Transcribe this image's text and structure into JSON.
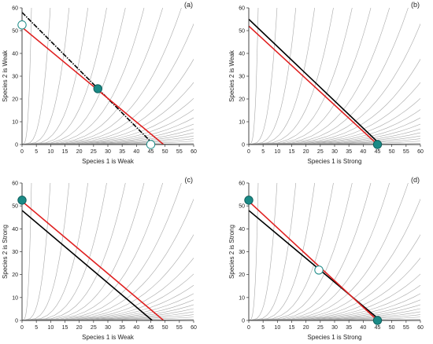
{
  "chart_data": [
    {
      "type": "line",
      "panel_label": "(a)",
      "xlabel": "Species 1 is Weak",
      "ylabel": "Species 2 is Weak",
      "xlim": [
        0,
        60
      ],
      "ylim": [
        0,
        60
      ],
      "xticks": [
        "0",
        "5",
        "10",
        "15",
        "20",
        "25",
        "30",
        "35",
        "40",
        "45",
        "50",
        "55",
        "60"
      ],
      "yticks": [
        "0",
        "10",
        "20",
        "30",
        "40",
        "50",
        "60"
      ],
      "nullclines": [
        {
          "color": "#000000",
          "dashed": true,
          "x": [
            0,
            46
          ],
          "y": [
            58,
            0
          ]
        },
        {
          "color": "#e02020",
          "dashed": false,
          "x": [
            0,
            49.5
          ],
          "y": [
            51.5,
            0
          ]
        }
      ],
      "equilibria": [
        {
          "x": 26.5,
          "y": 24.5,
          "stable": true
        },
        {
          "x": 0,
          "y": 52.5,
          "stable": false
        },
        {
          "x": 45,
          "y": 0,
          "stable": false
        }
      ]
    },
    {
      "type": "line",
      "panel_label": "(b)",
      "xlabel": "Species 1 is Strong",
      "ylabel": "Species 2 is Weak",
      "xlim": [
        0,
        60
      ],
      "ylim": [
        0,
        60
      ],
      "xticks": [
        "0",
        "5",
        "10",
        "15",
        "20",
        "25",
        "30",
        "35",
        "40",
        "45",
        "50",
        "55",
        "60"
      ],
      "yticks": [
        "0",
        "10",
        "20",
        "30",
        "40",
        "50",
        "60"
      ],
      "nullclines": [
        {
          "color": "#000000",
          "dashed": false,
          "x": [
            0,
            46
          ],
          "y": [
            55,
            0
          ]
        },
        {
          "color": "#e02020",
          "dashed": false,
          "x": [
            0,
            45
          ],
          "y": [
            52,
            0
          ]
        }
      ],
      "equilibria": [
        {
          "x": 45,
          "y": 0,
          "stable": true
        }
      ]
    },
    {
      "type": "line",
      "panel_label": "(c)",
      "xlabel": "Species 1 is Weak",
      "ylabel": "Species 2 is Strong",
      "xlim": [
        0,
        60
      ],
      "ylim": [
        0,
        60
      ],
      "xticks": [
        "0",
        "5",
        "10",
        "15",
        "20",
        "25",
        "30",
        "35",
        "40",
        "45",
        "50",
        "55",
        "60"
      ],
      "yticks": [
        "0",
        "10",
        "20",
        "30",
        "40",
        "50",
        "60"
      ],
      "nullclines": [
        {
          "color": "#000000",
          "dashed": false,
          "x": [
            0,
            45.5
          ],
          "y": [
            48,
            0
          ]
        },
        {
          "color": "#e02020",
          "dashed": false,
          "x": [
            0,
            49.5
          ],
          "y": [
            52,
            0
          ]
        }
      ],
      "equilibria": [
        {
          "x": 0,
          "y": 52.5,
          "stable": true
        }
      ]
    },
    {
      "type": "line",
      "panel_label": "(d)",
      "xlabel": "Species 1 is Strong",
      "ylabel": "Species 2 is Strong",
      "xlim": [
        0,
        60
      ],
      "ylim": [
        0,
        60
      ],
      "xticks": [
        "0",
        "5",
        "10",
        "15",
        "20",
        "25",
        "30",
        "35",
        "40",
        "45",
        "50",
        "55",
        "60"
      ],
      "yticks": [
        "0",
        "10",
        "20",
        "30",
        "40",
        "50",
        "60"
      ],
      "nullclines": [
        {
          "color": "#000000",
          "dashed": false,
          "x": [
            0,
            46
          ],
          "y": [
            48,
            0
          ]
        },
        {
          "color": "#e02020",
          "dashed": false,
          "x": [
            0,
            45
          ],
          "y": [
            52,
            0
          ]
        }
      ],
      "equilibria": [
        {
          "x": 0,
          "y": 52.5,
          "stable": true
        },
        {
          "x": 45,
          "y": 0,
          "stable": true
        },
        {
          "x": 24.5,
          "y": 22,
          "stable": false
        }
      ]
    }
  ],
  "colors": {
    "trajectory": "#a8a8a8",
    "axis": "#333333",
    "equilibrium_fill": "#1a8a86",
    "equilibrium_edge": "#0f5f5c",
    "unstable_fill": "#ffffff",
    "unstable_edge": "#1a8a86"
  }
}
